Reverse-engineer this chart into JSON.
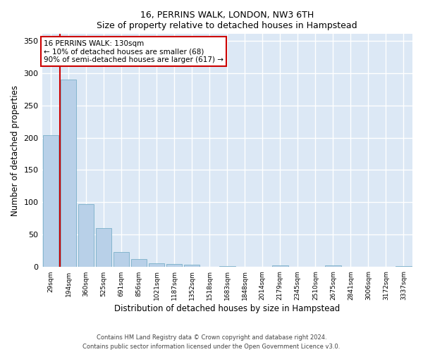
{
  "title": "16, PERRINS WALK, LONDON, NW3 6TH",
  "subtitle": "Size of property relative to detached houses in Hampstead",
  "xlabel": "Distribution of detached houses by size in Hampstead",
  "ylabel": "Number of detached properties",
  "footnote1": "Contains HM Land Registry data © Crown copyright and database right 2024.",
  "footnote2": "Contains public sector information licensed under the Open Government Licence v3.0.",
  "bar_color": "#b8d0e8",
  "bar_edge_color": "#7aafc8",
  "background_color": "#dce8f5",
  "grid_color": "#ffffff",
  "annotation_box_color": "#cc0000",
  "vline_color": "#cc0000",
  "categories": [
    "29sqm",
    "194sqm",
    "360sqm",
    "525sqm",
    "691sqm",
    "856sqm",
    "1021sqm",
    "1187sqm",
    "1352sqm",
    "1518sqm",
    "1683sqm",
    "1848sqm",
    "2014sqm",
    "2179sqm",
    "2345sqm",
    "2510sqm",
    "2675sqm",
    "2841sqm",
    "3006sqm",
    "3172sqm",
    "3337sqm"
  ],
  "values": [
    204,
    290,
    97,
    60,
    23,
    13,
    6,
    5,
    4,
    0,
    2,
    0,
    0,
    3,
    0,
    0,
    3,
    0,
    0,
    0,
    2
  ],
  "ylim": [
    0,
    360
  ],
  "yticks": [
    0,
    50,
    100,
    150,
    200,
    250,
    300,
    350
  ],
  "annotation_text_line1": "16 PERRINS WALK: 130sqm",
  "annotation_text_line2": "← 10% of detached houses are smaller (68)",
  "annotation_text_line3": "90% of semi-detached houses are larger (617) →",
  "vline_x": 0.5
}
